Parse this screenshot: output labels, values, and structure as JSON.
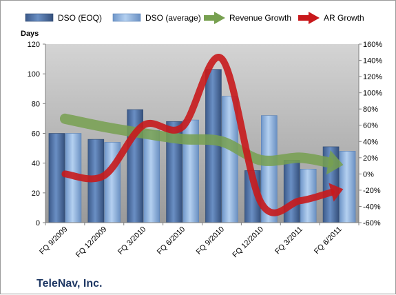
{
  "footer": {
    "company": "TeleNav, Inc."
  },
  "chart_data": {
    "type": "bar",
    "categories": [
      "FQ 9/2009",
      "FQ 12/2009",
      "FQ 3/2010",
      "FQ 6/2010",
      "FQ 9/2010",
      "FQ 12/2010",
      "FQ 3/2011",
      "FQ 6/2011"
    ],
    "y_left": {
      "label": "Days",
      "lim": [
        0,
        120
      ],
      "ticks": [
        0,
        20,
        40,
        60,
        80,
        100,
        120
      ]
    },
    "y_right": {
      "lim": [
        -60,
        160
      ],
      "ticks": [
        "-60%",
        "-40%",
        "-20%",
        "0%",
        "20%",
        "40%",
        "60%",
        "80%",
        "100%",
        "120%",
        "140%",
        "160%"
      ]
    },
    "legend_position": "top",
    "grid": false,
    "series": [
      {
        "name": "DSO (EOQ)",
        "kind": "bar",
        "axis": "left",
        "color": "#4a6fa5",
        "values": [
          60,
          56,
          76,
          68,
          103,
          35,
          42,
          51
        ]
      },
      {
        "name": "DSO (average)",
        "kind": "bar",
        "axis": "left",
        "color": "#8fb4e0",
        "values": [
          60,
          54,
          62,
          69,
          85,
          72,
          36,
          48
        ]
      },
      {
        "name": "Revenue Growth",
        "kind": "line",
        "axis": "right",
        "color": "#77a050",
        "values": [
          68,
          58,
          50,
          43,
          40,
          17,
          20,
          12
        ]
      },
      {
        "name": "AR Growth",
        "kind": "line",
        "axis": "right",
        "color": "#c8191c",
        "values": [
          0,
          -2,
          60,
          58,
          142,
          -35,
          -33,
          -20
        ]
      }
    ]
  }
}
